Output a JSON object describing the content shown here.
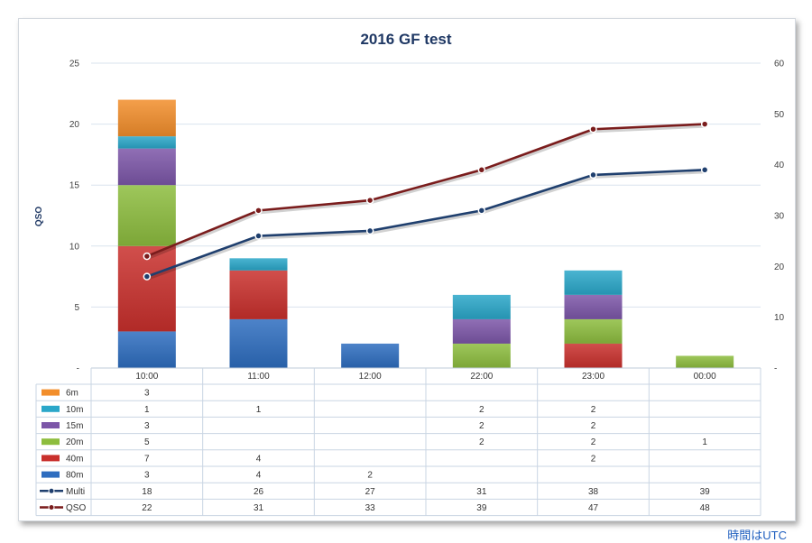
{
  "chart_data": {
    "type": "bar",
    "title": "2016 GF test",
    "ylabel": "QSO",
    "xlabel": "",
    "footnote": "時間はUTC",
    "categories": [
      "10:00",
      "11:00",
      "12:00",
      "22:00",
      "23:00",
      "00:00"
    ],
    "ylim": [
      0,
      25
    ],
    "y_ticks": [
      0,
      5,
      10,
      15,
      20,
      25
    ],
    "y_tick_labels": [
      "-",
      "5",
      "10",
      "15",
      "20",
      "25"
    ],
    "y2lim": [
      0,
      60
    ],
    "y2_ticks": [
      0,
      10,
      20,
      30,
      40,
      50,
      60
    ],
    "y2_tick_labels": [
      "-",
      "10",
      "20",
      "30",
      "40",
      "50",
      "60"
    ],
    "stacked": true,
    "grid": true,
    "legend": "data-table",
    "series": [
      {
        "name": "6m",
        "kind": "bar",
        "color": "#f28e2b",
        "values": [
          3,
          null,
          null,
          null,
          null,
          null
        ]
      },
      {
        "name": "10m",
        "kind": "bar",
        "color": "#2aa7c9",
        "values": [
          1,
          1,
          null,
          2,
          2,
          null
        ]
      },
      {
        "name": "15m",
        "kind": "bar",
        "color": "#7c56a8",
        "values": [
          3,
          null,
          null,
          2,
          2,
          null
        ]
      },
      {
        "name": "20m",
        "kind": "bar",
        "color": "#8dbd3e",
        "values": [
          5,
          null,
          null,
          2,
          2,
          1
        ]
      },
      {
        "name": "40m",
        "kind": "bar",
        "color": "#c9302c",
        "values": [
          7,
          4,
          null,
          null,
          2,
          null
        ]
      },
      {
        "name": "80m",
        "kind": "bar",
        "color": "#2e6dbf",
        "values": [
          3,
          4,
          2,
          null,
          null,
          null
        ]
      },
      {
        "name": "Multi",
        "kind": "line",
        "axis": "right",
        "color": "#1f3f6e",
        "values": [
          18,
          26,
          27,
          31,
          38,
          39
        ]
      },
      {
        "name": "QSO",
        "kind": "line",
        "axis": "right",
        "color": "#7a1c1c",
        "values": [
          22,
          31,
          33,
          39,
          47,
          48
        ]
      }
    ]
  }
}
